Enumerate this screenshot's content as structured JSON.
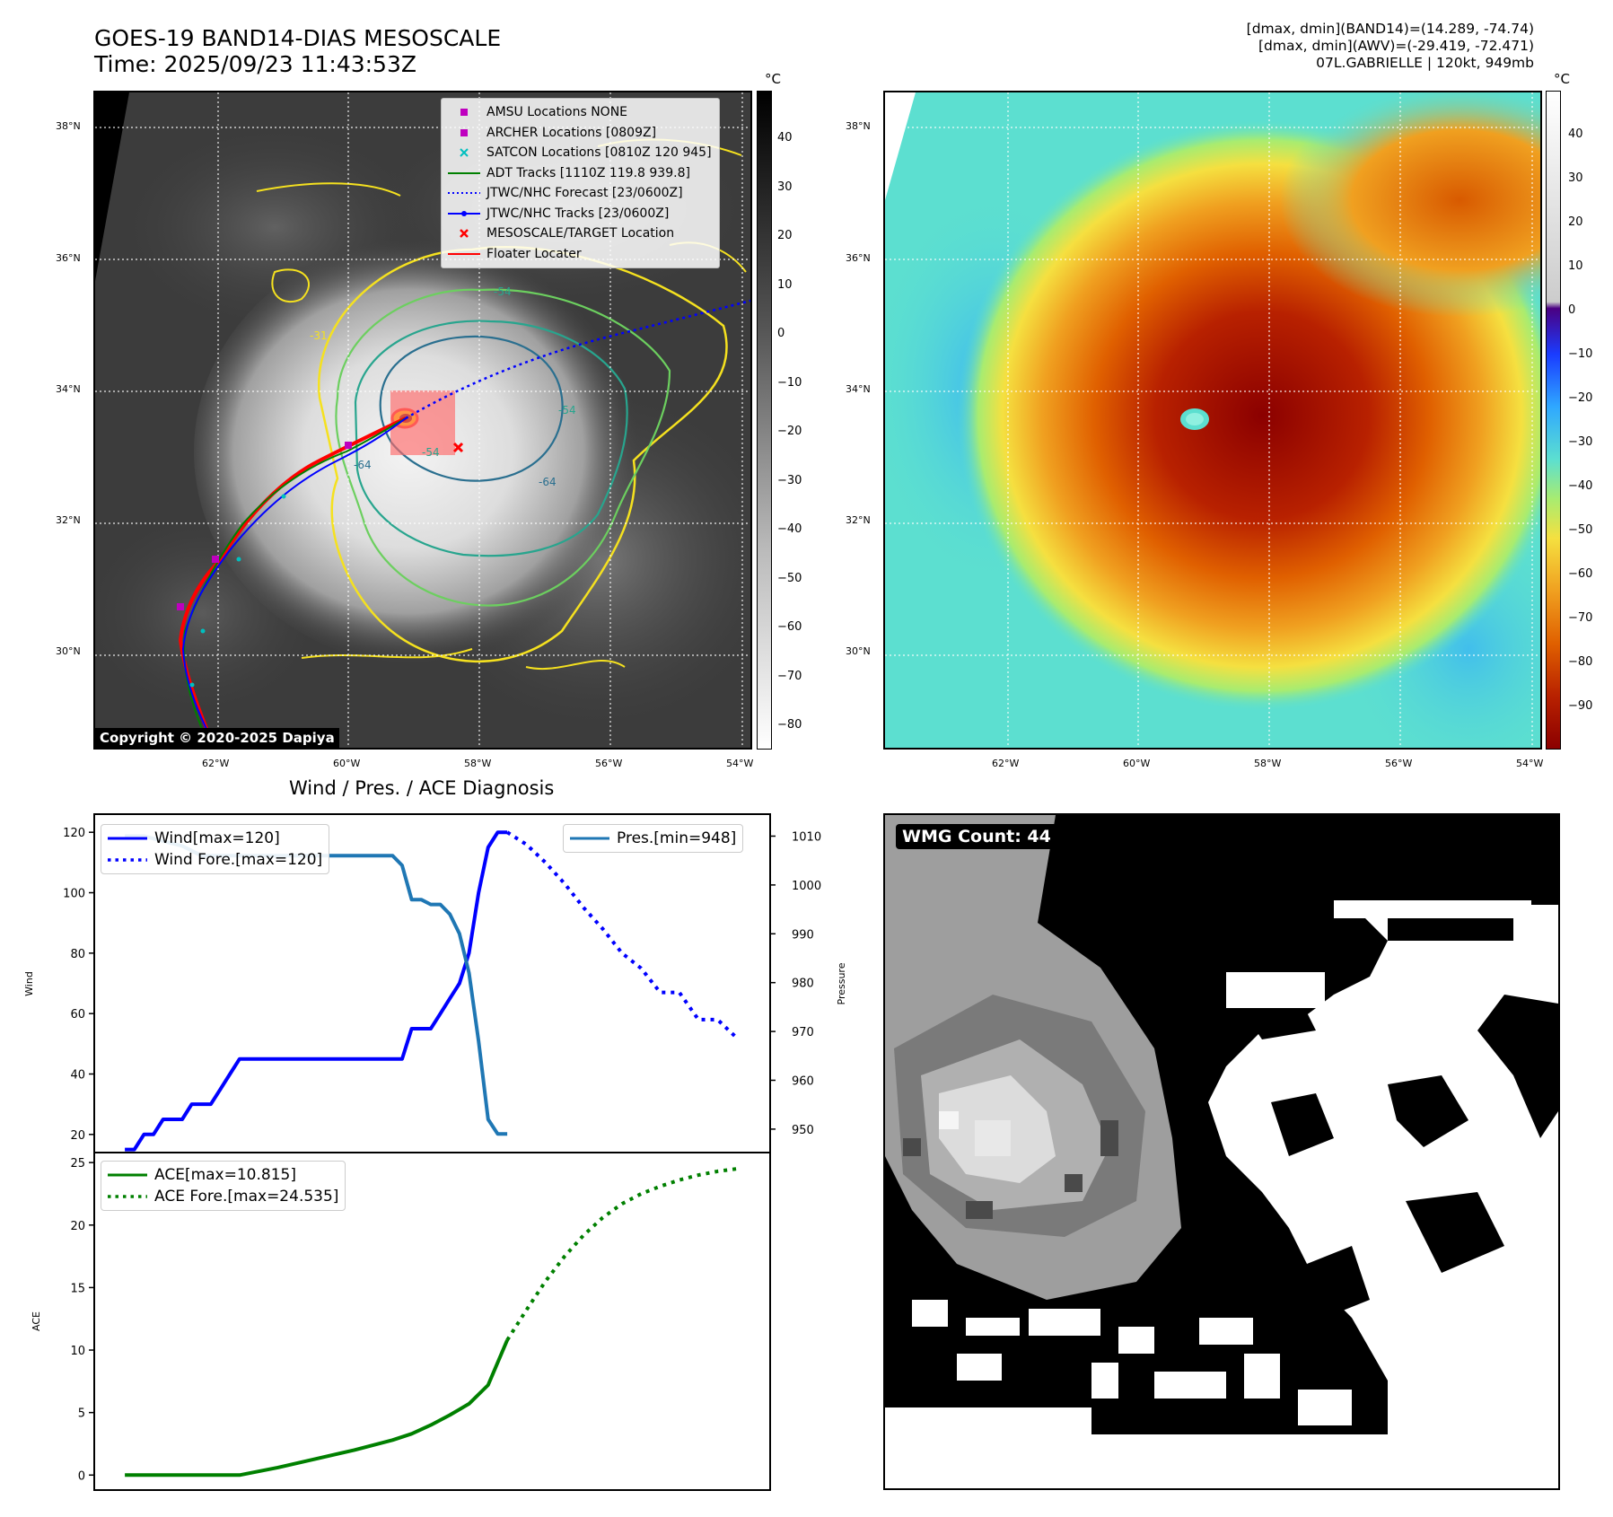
{
  "header": {
    "title_line1": "GOES-19 BAND14-DIAS MESOSCALE",
    "title_line2": "Time: 2025/09/23 11:43:53Z",
    "info_line1": "[dmax, dmin](BAND14)=(14.289, -74.74)",
    "info_line2": "[dmax, dmin](AWV)=(-29.419, -72.471)",
    "info_line3": "07L.GABRIELLE | 120kt, 949mb"
  },
  "map_axes": {
    "lat_labels": [
      "38°N",
      "36°N",
      "34°N",
      "32°N",
      "30°N"
    ],
    "lon_labels": [
      "62°W",
      "60°W",
      "58°W",
      "56°W",
      "54°W"
    ]
  },
  "left_map": {
    "copyright": "Copyright © 2020-2025 Dapiya",
    "colorbar_unit": "°C",
    "colorbar_ticks": [
      "40",
      "30",
      "20",
      "10",
      "0",
      "−10",
      "−20",
      "−30",
      "−40",
      "−50",
      "−60",
      "−70",
      "−80"
    ],
    "contour_labels": [
      "-54",
      "-64",
      "-54",
      "-64",
      "-31",
      "-54"
    ],
    "legend": [
      {
        "label": "AMSU Locations NONE",
        "symbol": "square",
        "color": "#bf00bf"
      },
      {
        "label": "ARCHER Locations [0809Z]",
        "symbol": "square",
        "color": "#bf00bf"
      },
      {
        "label": "SATCON Locations [0810Z 120 945]",
        "symbol": "x",
        "color": "#00bfbf"
      },
      {
        "label": "ADT Tracks [1110Z 119.8 939.8]",
        "symbol": "line",
        "color": "#008000"
      },
      {
        "label": "JTWC/NHC Forecast [23/0600Z]",
        "symbol": "dotted",
        "color": "#0000ff"
      },
      {
        "label": "JTWC/NHC Tracks [23/0600Z]",
        "symbol": "line-dot",
        "color": "#0000ff"
      },
      {
        "label": "MESOSCALE/TARGET Location",
        "symbol": "x",
        "color": "#ff0000"
      },
      {
        "label": "Floater Locater",
        "symbol": "line",
        "color": "#ff0000"
      }
    ]
  },
  "right_map": {
    "colorbar_unit": "°C",
    "colorbar_ticks": [
      "40",
      "30",
      "20",
      "10",
      "0",
      "−10",
      "−20",
      "−30",
      "−40",
      "−50",
      "−60",
      "−70",
      "−80",
      "−90"
    ]
  },
  "wmg_panel": {
    "label": "WMG Count: 44"
  },
  "chart_data": [
    {
      "type": "line",
      "title": "Wind / Pres. / ACE Diagnosis",
      "ylabel": "Wind",
      "y2label": "Pressure",
      "ylim": [
        14,
        126
      ],
      "y2lim": [
        945.2,
        1014.5
      ],
      "yticks": [
        20,
        40,
        60,
        80,
        100,
        120
      ],
      "y2ticks": [
        950,
        960,
        970,
        980,
        990,
        1000,
        1010
      ],
      "legend_left": [
        "Wind[max=120]",
        "Wind Fore.[max=120]"
      ],
      "legend_right": [
        "Pres.[min=948]"
      ],
      "series": [
        {
          "name": "Wind[max=120]",
          "color": "#0000ff",
          "style": "solid",
          "axis": "left",
          "x": [
            0,
            1,
            2,
            3,
            4,
            5,
            6,
            7,
            8,
            9,
            10,
            11,
            12,
            13,
            14,
            15,
            16,
            17,
            18,
            19,
            20,
            21,
            22,
            23,
            24,
            25,
            26,
            27,
            28,
            29,
            30,
            31,
            32,
            33,
            34,
            35,
            36,
            37,
            38,
            39,
            40
          ],
          "y": [
            15,
            15,
            20,
            20,
            25,
            25,
            25,
            30,
            30,
            30,
            35,
            40,
            45,
            45,
            45,
            45,
            45,
            45,
            45,
            45,
            45,
            45,
            45,
            45,
            45,
            45,
            45,
            45,
            45,
            45,
            55,
            55,
            55,
            60,
            65,
            70,
            80,
            100,
            115,
            120,
            120
          ]
        },
        {
          "name": "Wind Fore.[max=120]",
          "color": "#0000ff",
          "style": "dotted",
          "axis": "left",
          "x": [
            40,
            42,
            44,
            46,
            48,
            50,
            52,
            54,
            56,
            58,
            60,
            62,
            64
          ],
          "y": [
            120,
            115,
            110,
            103,
            95,
            88,
            80,
            75,
            70,
            65,
            60,
            55,
            50
          ],
          "y_raw": [
            120,
            116,
            110,
            103,
            95,
            88,
            80,
            75,
            67,
            67,
            58,
            58,
            52
          ]
        },
        {
          "name": "Pres.[min=948]",
          "color": "#1f77b4",
          "style": "solid",
          "axis": "right",
          "x": [
            0,
            2,
            4,
            6,
            8,
            10,
            12,
            14,
            16,
            18,
            20,
            22,
            24,
            26,
            28,
            29,
            30,
            31,
            32,
            33,
            34,
            35,
            36,
            37,
            38,
            39,
            40
          ],
          "y": [
            1010,
            1010,
            1009,
            1008,
            1006,
            1006,
            1006,
            1006,
            1006,
            1006,
            1006,
            1006,
            1006,
            1006,
            1006,
            1004,
            997,
            997,
            996,
            996,
            994,
            990,
            982,
            968,
            952,
            949,
            949
          ]
        }
      ]
    },
    {
      "type": "line",
      "ylabel": "ACE",
      "ylim": [
        -1.2,
        25.8
      ],
      "yticks": [
        0,
        5,
        10,
        15,
        20,
        25
      ],
      "legend": [
        "ACE[max=10.815]",
        "ACE Fore.[max=24.535]"
      ],
      "series": [
        {
          "name": "ACE[max=10.815]",
          "color": "#008000",
          "style": "solid",
          "x": [
            0,
            4,
            8,
            12,
            16,
            20,
            24,
            28,
            30,
            32,
            34,
            36,
            38,
            40
          ],
          "y": [
            0,
            0,
            0,
            0,
            0.6,
            1.3,
            2.0,
            2.8,
            3.3,
            4.0,
            4.8,
            5.7,
            7.2,
            10.8
          ]
        },
        {
          "name": "ACE Fore.[max=24.535]",
          "color": "#008000",
          "style": "dotted",
          "x": [
            40,
            42,
            44,
            46,
            48,
            50,
            52,
            54,
            56,
            58,
            60,
            62,
            64
          ],
          "y": [
            10.8,
            13.2,
            15.5,
            17.5,
            19.2,
            20.6,
            21.7,
            22.5,
            23.1,
            23.6,
            24.0,
            24.3,
            24.5
          ]
        }
      ]
    }
  ]
}
